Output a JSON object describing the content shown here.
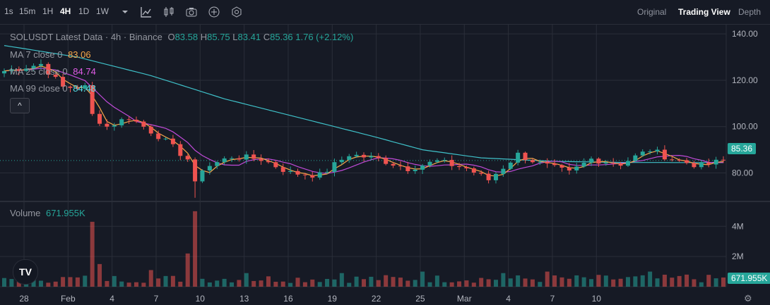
{
  "toolbar": {
    "timeframes": [
      "1s",
      "15m",
      "1H",
      "4H",
      "1D",
      "1W"
    ],
    "active": "4H",
    "dropdown_icon": "chevron-down-icon",
    "tools": [
      "indicators-icon",
      "candle-style-icon",
      "camera-icon",
      "add-icon",
      "settings-icon"
    ],
    "views": [
      "Original",
      "Trading View",
      "Depth"
    ],
    "active_view": "Trading View"
  },
  "legend": {
    "symbol": "SOLUSDT Latest Data · 4h · Binance",
    "o_label": "O",
    "o": "83.58",
    "h_label": "H",
    "h": "85.75",
    "l_label": "L",
    "l": "83.41",
    "c_label": "C",
    "c": "85.36",
    "change": "1.76 (+2.12%)",
    "ma7_label": "MA 7 close 0",
    "ma7": "83.06",
    "ma25_label": "MA 25 close 0",
    "ma25": "84.74",
    "ma99_label": "MA 99 close 0",
    "ma99": "84.48",
    "volume_label": "Volume",
    "volume": "671.955K",
    "collapse_glyph": "^"
  },
  "colors": {
    "up": "#26a69a",
    "down": "#ef5350",
    "ma7": "#f7a94a",
    "ma25": "#c04ad8",
    "ma99": "#3fc1c9",
    "ma7_text": "#f7a94a",
    "ma25_text": "#e25ce8",
    "ma99_text": "#56e0e8"
  },
  "logo_text": "TV",
  "chart_data": {
    "type": "candlestick",
    "price_axis": {
      "ticks": [
        80,
        100,
        120,
        140
      ],
      "tick_labels": [
        "80.00",
        "100.00",
        "120.00",
        "140.00"
      ],
      "range": [
        68,
        144
      ]
    },
    "volume_axis": {
      "ticks": [
        2,
        4
      ],
      "tick_labels": [
        "2M",
        "4M"
      ],
      "unit": "M",
      "range": [
        0,
        5.6
      ]
    },
    "time_axis": {
      "labels": [
        "28",
        "Feb",
        "4",
        "7",
        "10",
        "13",
        "16",
        "19",
        "22",
        "25",
        "Mar",
        "4",
        "7",
        "10"
      ],
      "label_bar_index": [
        0,
        6,
        12,
        18,
        24,
        30,
        36,
        42,
        48,
        54,
        60,
        66,
        72,
        78
      ]
    },
    "last_price": "85.36",
    "last_volume": "671.955K",
    "close_anchors": [
      [
        0,
        124
      ],
      [
        5,
        127
      ],
      [
        8,
        117
      ],
      [
        11,
        117
      ],
      [
        12,
        105
      ],
      [
        14,
        100
      ],
      [
        17,
        104
      ],
      [
        21,
        96
      ],
      [
        25,
        86
      ],
      [
        26,
        75
      ],
      [
        27,
        82
      ],
      [
        31,
        87
      ],
      [
        35,
        86
      ],
      [
        39,
        80
      ],
      [
        43,
        79
      ],
      [
        47,
        88
      ],
      [
        51,
        86
      ],
      [
        55,
        82
      ],
      [
        59,
        85
      ],
      [
        63,
        82
      ],
      [
        66,
        77
      ],
      [
        70,
        88
      ],
      [
        73,
        84
      ],
      [
        77,
        80
      ],
      [
        80,
        86
      ],
      [
        84,
        84
      ],
      [
        88,
        90
      ],
      [
        91,
        86
      ],
      [
        95,
        83
      ],
      [
        98,
        85.36
      ]
    ],
    "volume_spikes": [
      [
        12,
        4.3
      ],
      [
        26,
        5.0
      ],
      [
        25,
        2.2
      ],
      [
        13,
        1.5
      ],
      [
        20,
        1.1
      ],
      [
        33,
        0.9
      ],
      [
        46,
        0.9
      ],
      [
        57,
        1.0
      ],
      [
        68,
        0.9
      ],
      [
        74,
        1.0
      ],
      [
        88,
        1.0
      ],
      [
        93,
        0.8
      ]
    ],
    "ma99_anchors": [
      [
        0,
        135
      ],
      [
        10,
        130
      ],
      [
        20,
        122
      ],
      [
        30,
        112
      ],
      [
        40,
        104
      ],
      [
        50,
        96
      ],
      [
        57,
        90
      ],
      [
        65,
        86.5
      ],
      [
        75,
        85
      ],
      [
        85,
        84.5
      ],
      [
        98,
        84.48
      ]
    ]
  }
}
